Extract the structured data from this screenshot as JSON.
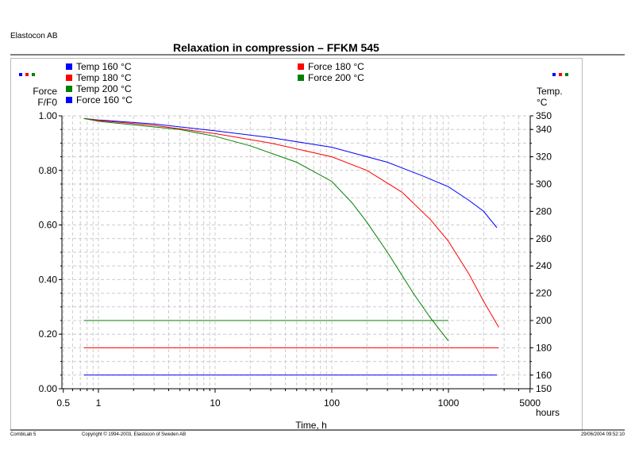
{
  "header": {
    "company": "Elastocon AB",
    "title": "Relaxation in compression – FFKM 545"
  },
  "footer": {
    "app": "CombiLab 5",
    "copyright": "Copyright © 1994-2003, Elastocon of Sweden AB",
    "datetime": "29/06/2004 09:52:10"
  },
  "chart_data": {
    "type": "line",
    "title": "Relaxation in compression – FFKM 545",
    "xlabel": "Time, h",
    "xunit": "hours",
    "xscale": "log",
    "xlim": [
      0.5,
      5000
    ],
    "xticks": [
      "0.5",
      "1",
      "10",
      "100",
      "1000",
      "5000"
    ],
    "ylabel_left": [
      "Force",
      "F/F0"
    ],
    "ylim_left": [
      0,
      1
    ],
    "yticks_left": [
      "0.00",
      "0.20",
      "0.40",
      "0.60",
      "0.80",
      "1.00"
    ],
    "ylabel_right": [
      "Temp.",
      "°C"
    ],
    "ylim_right": [
      150,
      350
    ],
    "yticks_right": [
      "150",
      "160",
      "180",
      "200",
      "220",
      "240",
      "260",
      "280",
      "300",
      "320",
      "340",
      "350"
    ],
    "grid": true,
    "legend": [
      {
        "name": "Temp 160 °C",
        "color": "#0000ff"
      },
      {
        "name": "Temp 180 °C",
        "color": "#ff0000"
      },
      {
        "name": "Temp 200 °C",
        "color": "#008000"
      },
      {
        "name": "Force 160 °C",
        "color": "#0000ff"
      },
      {
        "name": "Force 180 °C",
        "color": "#ff0000"
      },
      {
        "name": "Force 200 °C",
        "color": "#008000"
      }
    ],
    "series": [
      {
        "name": "Force 160 °C",
        "axis": "left",
        "color": "#0000ff",
        "points": [
          [
            0.75,
            0.99
          ],
          [
            1,
            0.985
          ],
          [
            3,
            0.97
          ],
          [
            10,
            0.945
          ],
          [
            30,
            0.92
          ],
          [
            100,
            0.885
          ],
          [
            300,
            0.83
          ],
          [
            600,
            0.78
          ],
          [
            1000,
            0.74
          ],
          [
            1500,
            0.69
          ],
          [
            2000,
            0.65
          ],
          [
            2600,
            0.59
          ]
        ]
      },
      {
        "name": "Force 180 °C",
        "axis": "left",
        "color": "#ff0000",
        "points": [
          [
            0.75,
            0.99
          ],
          [
            1,
            0.983
          ],
          [
            3,
            0.965
          ],
          [
            10,
            0.935
          ],
          [
            30,
            0.9
          ],
          [
            100,
            0.85
          ],
          [
            200,
            0.8
          ],
          [
            400,
            0.72
          ],
          [
            700,
            0.62
          ],
          [
            1000,
            0.54
          ],
          [
            1500,
            0.42
          ],
          [
            2000,
            0.32
          ],
          [
            2700,
            0.225
          ]
        ]
      },
      {
        "name": "Force 200 °C",
        "axis": "left",
        "color": "#008000",
        "points": [
          [
            0.75,
            0.99
          ],
          [
            1,
            0.98
          ],
          [
            5,
            0.95
          ],
          [
            10,
            0.925
          ],
          [
            20,
            0.89
          ],
          [
            50,
            0.83
          ],
          [
            100,
            0.76
          ],
          [
            150,
            0.68
          ],
          [
            200,
            0.61
          ],
          [
            300,
            0.5
          ],
          [
            500,
            0.35
          ],
          [
            700,
            0.26
          ],
          [
            1000,
            0.175
          ]
        ]
      },
      {
        "name": "Temp 160 °C",
        "axis": "right",
        "color": "#0000ff",
        "points": [
          [
            0.75,
            160
          ],
          [
            2600,
            160
          ]
        ]
      },
      {
        "name": "Temp 180 °C",
        "axis": "right",
        "color": "#ff0000",
        "points": [
          [
            0.75,
            180
          ],
          [
            2700,
            180
          ]
        ]
      },
      {
        "name": "Temp 200 °C",
        "axis": "right",
        "color": "#008000",
        "points": [
          [
            0.75,
            200
          ],
          [
            1000,
            200
          ]
        ]
      }
    ]
  }
}
